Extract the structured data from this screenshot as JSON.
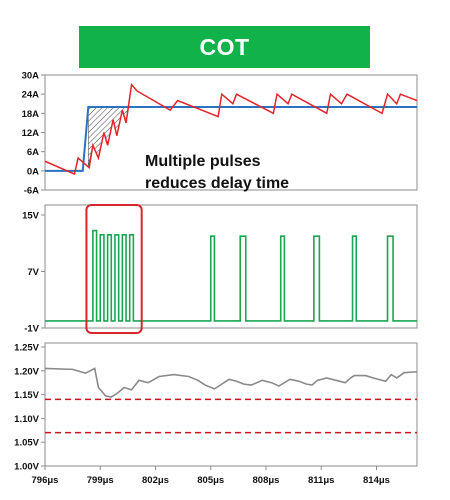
{
  "banner": {
    "title": "COT",
    "color": "#12b24b"
  },
  "chart_data": [
    {
      "type": "line",
      "panel": "current",
      "ylim": [
        -6,
        30
      ],
      "y_ticks": [
        "30A",
        "24A",
        "18A",
        "12A",
        "6A",
        "0A",
        "-6A"
      ],
      "y_tick_values": [
        30,
        24,
        18,
        12,
        6,
        0,
        -6
      ],
      "annotation": [
        "Multiple pulses",
        "reduces delay time"
      ],
      "series": [
        {
          "color": "#e3242b",
          "x": [
            796.0,
            797.6,
            797.8,
            798.4,
            798.6,
            798.9,
            799.2,
            799.4,
            799.7,
            799.9,
            800.2,
            800.4,
            800.7,
            801.0,
            802.8,
            803.2,
            805.4,
            805.6,
            806.2,
            806.4,
            808.4,
            808.6,
            809.2,
            809.4,
            811.3,
            811.5,
            812.1,
            812.4,
            814.3,
            814.6,
            815.1,
            815.3,
            816.2
          ],
          "y": [
            3.0,
            -1.0,
            4.0,
            1.0,
            8.0,
            4.0,
            12.0,
            8.0,
            16.0,
            11.0,
            19.0,
            15.0,
            27.0,
            25.0,
            19.0,
            22.0,
            17.0,
            24.0,
            21.0,
            24.0,
            18.0,
            24.0,
            21.0,
            24.0,
            18.0,
            24.0,
            21.0,
            24.0,
            18.0,
            24.0,
            21.0,
            24.0,
            22.0
          ]
        },
        {
          "color": "#2b72c0",
          "x": [
            796.0,
            797.8,
            798.05,
            798.35,
            816.2
          ],
          "y": [
            0.0,
            0.0,
            0.0,
            20.0,
            20.0
          ]
        }
      ]
    },
    {
      "type": "line",
      "panel": "switch-node",
      "ylim": [
        -1,
        15
      ],
      "y_ticks": [
        "15V",
        "7V",
        "-1V"
      ],
      "y_tick_values": [
        15,
        7,
        -1
      ],
      "series": [
        {
          "color": "#1aa552",
          "pulses": [
            [
              798.6,
              798.8,
              12.8
            ],
            [
              799.0,
              799.2,
              12.2
            ],
            [
              799.4,
              799.6,
              12.2
            ],
            [
              799.8,
              800.0,
              12.2
            ],
            [
              800.2,
              800.4,
              12.2
            ],
            [
              800.6,
              800.8,
              12.2
            ],
            [
              805.0,
              805.2,
              12.0
            ],
            [
              806.6,
              806.9,
              12.0
            ],
            [
              808.8,
              809.0,
              12.0
            ],
            [
              810.6,
              810.9,
              12.0
            ],
            [
              812.7,
              812.9,
              12.0
            ],
            [
              814.6,
              814.9,
              12.0
            ]
          ],
          "baseline": 0.0
        }
      ]
    },
    {
      "type": "line",
      "panel": "output-voltage",
      "ylim": [
        1.0,
        1.25
      ],
      "y_ticks": [
        "1.25V",
        "1.20V",
        "1.15V",
        "1.10V",
        "1.05V",
        "1.00V"
      ],
      "y_tick_values": [
        1.25,
        1.2,
        1.15,
        1.1,
        1.05,
        1.0
      ],
      "x_ticks": [
        "796μs",
        "799μs",
        "802μs",
        "805μs",
        "808μs",
        "811μs",
        "814μs"
      ],
      "x_tick_values": [
        796,
        799,
        802,
        805,
        808,
        811,
        814
      ],
      "xlim": [
        796,
        816.2
      ],
      "limit_lines": {
        "color": "#c9151e",
        "values": [
          1.14,
          1.07
        ]
      },
      "series": [
        {
          "color": "#8a8a8a",
          "x": [
            796.0,
            797.5,
            798.2,
            798.7,
            798.9,
            799.3,
            799.6,
            799.9,
            800.3,
            800.7,
            801.1,
            801.6,
            802.2,
            803.0,
            803.8,
            804.3,
            804.7,
            805.2,
            805.6,
            806.0,
            806.4,
            806.8,
            807.2,
            807.8,
            808.3,
            808.7,
            809.3,
            809.8,
            810.2,
            810.5,
            810.8,
            811.3,
            811.8,
            812.3,
            812.6,
            812.8,
            813.4,
            814.0,
            814.5,
            814.8,
            815.1,
            815.5,
            816.2
          ],
          "y": [
            1.205,
            1.203,
            1.195,
            1.205,
            1.165,
            1.147,
            1.145,
            1.152,
            1.165,
            1.16,
            1.18,
            1.175,
            1.188,
            1.192,
            1.188,
            1.18,
            1.17,
            1.162,
            1.172,
            1.182,
            1.178,
            1.172,
            1.17,
            1.18,
            1.175,
            1.168,
            1.182,
            1.178,
            1.172,
            1.17,
            1.18,
            1.185,
            1.18,
            1.175,
            1.185,
            1.19,
            1.19,
            1.183,
            1.178,
            1.192,
            1.185,
            1.196,
            1.198
          ]
        }
      ]
    }
  ]
}
